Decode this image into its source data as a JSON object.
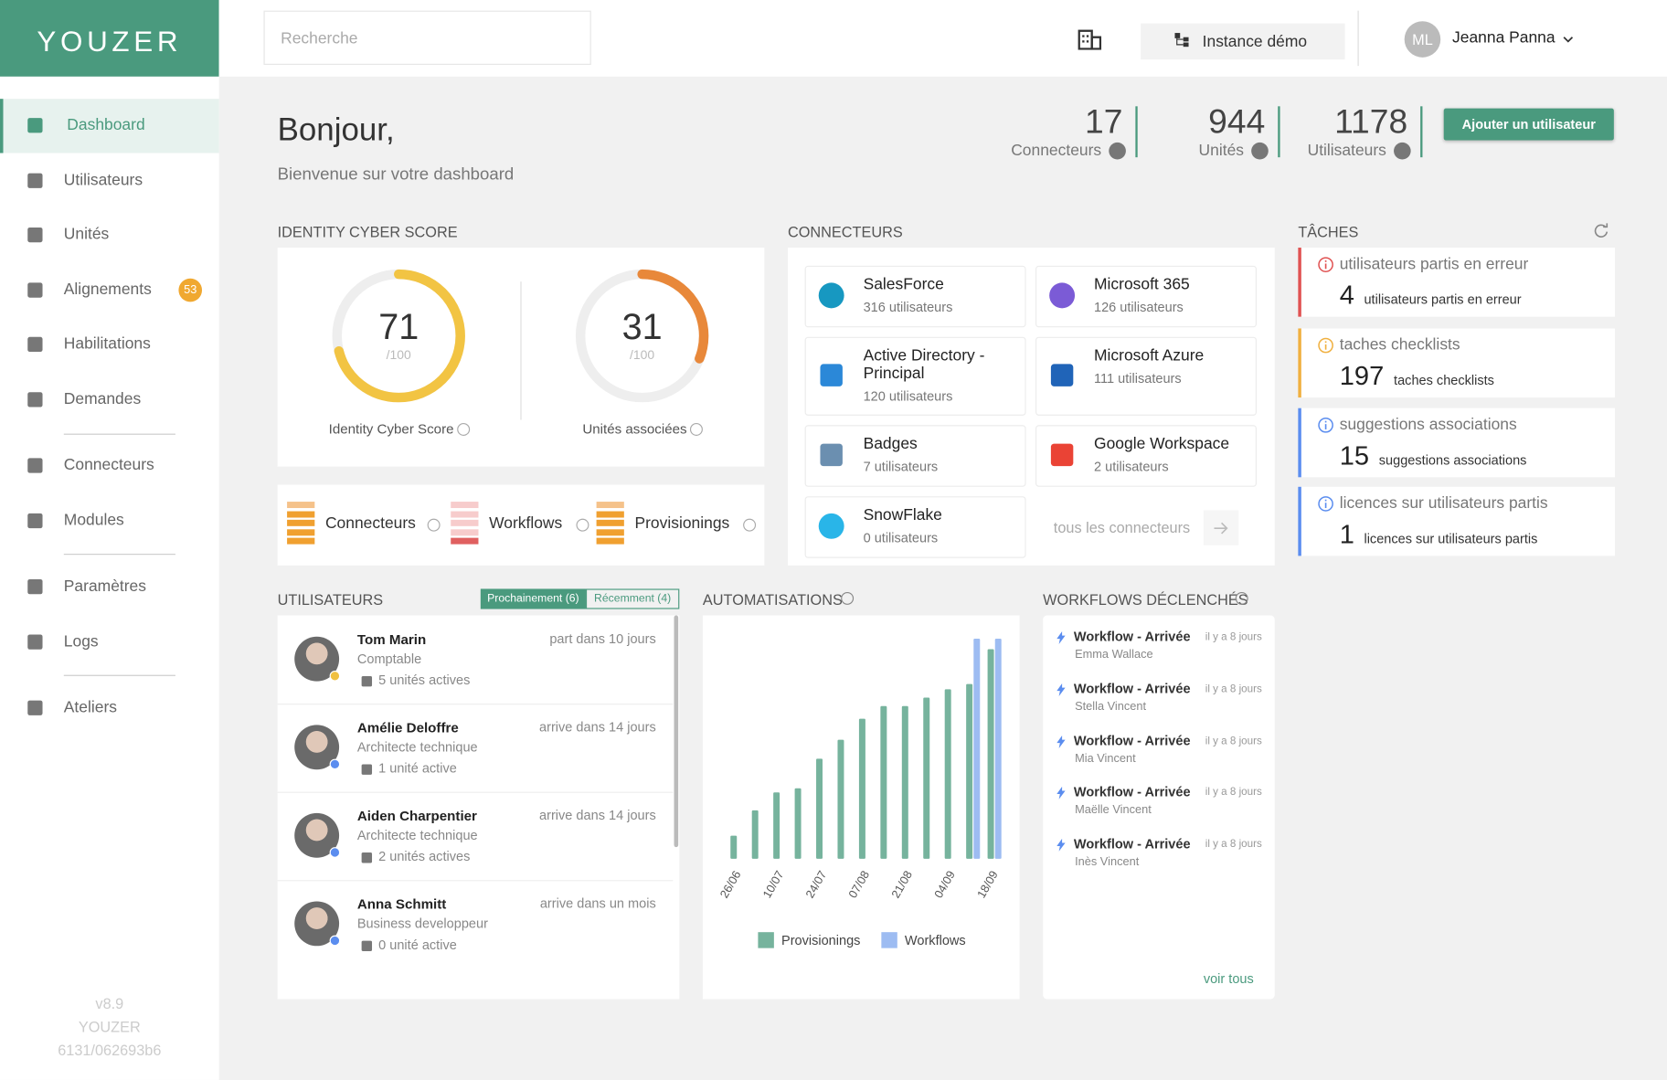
{
  "sidebar": {
    "logo": "YOUZER",
    "items": [
      {
        "label": "Dashboard"
      },
      {
        "label": "Utilisateurs"
      },
      {
        "label": "Unités"
      },
      {
        "label": "Alignements",
        "badge": 53
      },
      {
        "label": "Habilitations"
      },
      {
        "label": "Demandes"
      },
      {
        "label": "Connecteurs"
      },
      {
        "label": "Modules"
      },
      {
        "label": "Paramètres"
      },
      {
        "label": "Logs"
      },
      {
        "label": "Ateliers"
      }
    ],
    "version": "v8.9",
    "brand": "YOUZER",
    "build": "6131/062693b6"
  },
  "topbar": {
    "search_placeholder": "Recherche",
    "instance": "Instance démo",
    "user_initials": "ML",
    "user_name": "Jeanna Panna"
  },
  "header": {
    "greeting": "Bonjour,",
    "subtitle": "Bienvenue sur votre dashboard",
    "stats": [
      {
        "value": 17,
        "label": "Connecteurs"
      },
      {
        "value": 944,
        "label": "Unités"
      },
      {
        "value": 1178,
        "label": "Utilisateurs"
      }
    ],
    "add_button": "Ajouter un utilisateur"
  },
  "identity": {
    "title": "IDENTITY CYBER SCORE",
    "gauges": [
      {
        "value": 71,
        "max": 100,
        "max_label": "/100",
        "label": "Identity Cyber Score",
        "color": "#f2c443"
      },
      {
        "value": 31,
        "max": 100,
        "max_label": "/100",
        "label": "Unités associées",
        "color": "#e8883a"
      }
    ],
    "statuses": [
      "Connecteurs",
      "Workflows",
      "Provisionings"
    ]
  },
  "connectors": {
    "title": "CONNECTEURS",
    "items": [
      {
        "name": "SalesForce",
        "users": "316 utilisateurs"
      },
      {
        "name": "Microsoft 365",
        "users": "126 utilisateurs"
      },
      {
        "name": "Active Directory - Principal",
        "users": "120 utilisateurs"
      },
      {
        "name": "Microsoft Azure",
        "users": "111 utilisateurs"
      },
      {
        "name": "Badges",
        "users": "7 utilisateurs"
      },
      {
        "name": "Google Workspace",
        "users": "2 utilisateurs"
      },
      {
        "name": "SnowFlake",
        "users": "0 utilisateurs"
      }
    ],
    "all": "tous les connecteurs"
  },
  "tasks": {
    "title": "TÂCHES",
    "items": [
      {
        "label": "utilisateurs partis en erreur",
        "count": 4,
        "color": "#e05252"
      },
      {
        "label": "taches checklists",
        "count": 197,
        "color": "#f0b040"
      },
      {
        "label": "suggestions associations",
        "count": 15,
        "color": "#5b8def"
      },
      {
        "label": "licences sur utilisateurs partis",
        "count": 1,
        "color": "#5b8def"
      }
    ]
  },
  "users": {
    "title": "UTILISATEURS",
    "tabs": [
      "Prochainement (6)",
      "Récemment (4)"
    ],
    "items": [
      {
        "name": "Tom Marin",
        "role": "Comptable",
        "units": "5 unités actives",
        "event": "part dans 10 jours"
      },
      {
        "name": "Amélie Deloffre",
        "role": "Architecte technique",
        "units": "1 unité active",
        "event": "arrive dans 14 jours"
      },
      {
        "name": "Aiden Charpentier",
        "role": "Architecte technique",
        "units": "2 unités actives",
        "event": "arrive dans 14 jours"
      },
      {
        "name": "Anna Schmitt",
        "role": "Business developpeur",
        "units": "0 unité active",
        "event": "arrive dans un mois"
      }
    ]
  },
  "chart_data": {
    "type": "bar",
    "title": "AUTOMATISATIONS",
    "categories": [
      "26/06",
      null,
      "10/07",
      null,
      "24/07",
      null,
      "07/08",
      null,
      "21/08",
      null,
      "04/09",
      null,
      "18/09"
    ],
    "series": [
      {
        "name": "Provisionings",
        "color": "#76b39d",
        "values": [
          22,
          46,
          63,
          67,
          95,
          113,
          133,
          145,
          145,
          153,
          161,
          166,
          199
        ]
      },
      {
        "name": "Workflows",
        "color": "#9dbcf2",
        "values": [
          null,
          null,
          null,
          null,
          null,
          null,
          null,
          null,
          null,
          null,
          null,
          209,
          209
        ]
      }
    ],
    "ylim": [
      0,
      220
    ]
  },
  "workflows": {
    "title": "WORKFLOWS DÉCLENCHÉS",
    "items": [
      {
        "name": "Workflow - Arrivée",
        "time": "il y a 8 jours",
        "person": "Emma Wallace"
      },
      {
        "name": "Workflow - Arrivée",
        "time": "il y a 8 jours",
        "person": "Stella Vincent"
      },
      {
        "name": "Workflow - Arrivée",
        "time": "il y a 8 jours",
        "person": "Mia Vincent"
      },
      {
        "name": "Workflow - Arrivée",
        "time": "il y a 8 jours",
        "person": "Maëlle Vincent"
      },
      {
        "name": "Workflow - Arrivée",
        "time": "il y a 8 jours",
        "person": "Inès Vincent"
      }
    ],
    "see_all": "voir tous"
  }
}
